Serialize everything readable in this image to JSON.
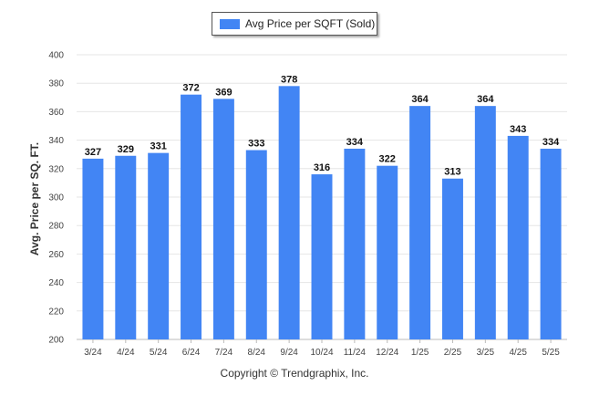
{
  "chart_data": {
    "type": "bar",
    "categories": [
      "3/24",
      "4/24",
      "5/24",
      "6/24",
      "7/24",
      "8/24",
      "9/24",
      "10/24",
      "11/24",
      "12/24",
      "1/25",
      "2/25",
      "3/25",
      "4/25",
      "5/25"
    ],
    "series": [
      {
        "name": "Avg Price per SQFT (Sold)",
        "values": [
          327,
          329,
          331,
          372,
          369,
          333,
          378,
          316,
          334,
          322,
          364,
          313,
          364,
          343,
          334
        ]
      }
    ],
    "ylabel": "Avg. Price per SQ. FT.",
    "xlabel": "",
    "ylim": [
      200,
      400
    ],
    "yticks": [
      200,
      220,
      240,
      260,
      280,
      300,
      320,
      340,
      360,
      380,
      400
    ],
    "grid": true,
    "legend": "top-center",
    "bar_color": "#4285f4"
  },
  "credit": "Copyright © Trendgraphix, Inc."
}
